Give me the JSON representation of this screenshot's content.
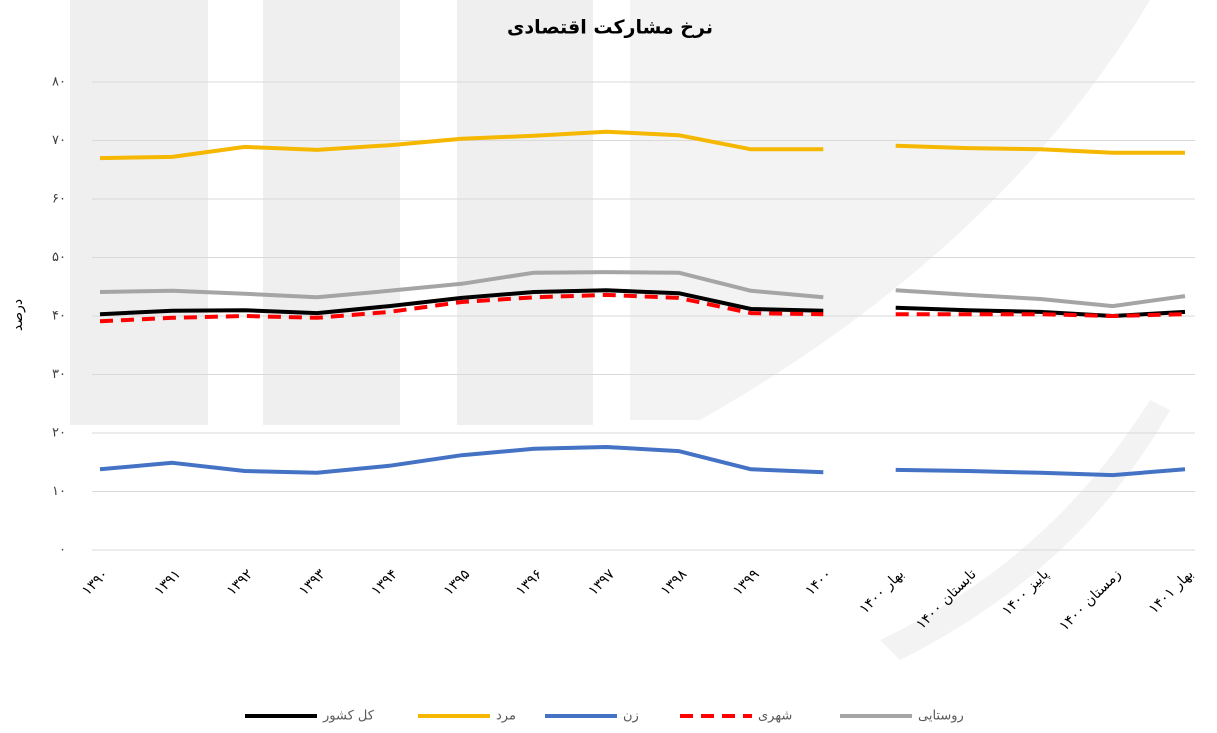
{
  "chart_data": {
    "type": "line",
    "title": "نرخ مشارکت اقتصادی",
    "y_label": "درصد",
    "categories": [
      "۱۳۹۰",
      "۱۳۹۱",
      "۱۳۹۲",
      "۱۳۹۳",
      "۱۳۹۴",
      "۱۳۹۵",
      "۱۳۹۶",
      "۱۳۹۷",
      "۱۳۹۸",
      "۱۳۹۹",
      "۱۴۰۰",
      "بهار ۱۴۰۰",
      "تابستان ۱۴۰۰",
      "پاییز ۱۴۰۰",
      "زمستان ۱۴۰۰",
      "بهار ۱۴۰۱"
    ],
    "gap_after": 10,
    "series": [
      {
        "name": "کل کشور",
        "color": "#000000",
        "values": [
          40.3,
          40.9,
          41.0,
          40.5,
          41.7,
          43.1,
          44.1,
          44.4,
          43.9,
          41.2,
          40.9,
          41.4,
          41.0,
          40.7,
          40.0,
          40.7
        ]
      },
      {
        "name": "مرد",
        "color": "#f5b700",
        "values": [
          67.0,
          67.2,
          68.9,
          68.4,
          69.2,
          70.3,
          70.8,
          71.5,
          70.9,
          68.5,
          68.5,
          69.1,
          68.7,
          68.5,
          67.9,
          67.9
        ]
      },
      {
        "name": "زن",
        "color": "#4472c4",
        "values": [
          13.8,
          14.9,
          13.5,
          13.2,
          14.4,
          16.2,
          17.3,
          17.6,
          16.9,
          13.8,
          13.3,
          13.7,
          13.5,
          13.2,
          12.8,
          13.8
        ]
      },
      {
        "name": "شهری",
        "color": "#ff0000",
        "dashed": true,
        "values": [
          39.1,
          39.7,
          40.0,
          39.7,
          40.7,
          42.4,
          43.2,
          43.6,
          43.1,
          40.5,
          40.3,
          40.3,
          40.3,
          40.3,
          40.0,
          40.3
        ]
      },
      {
        "name": "روستایی",
        "color": "#a5a5a5",
        "values": [
          44.1,
          44.3,
          43.8,
          43.2,
          44.3,
          45.5,
          47.4,
          47.5,
          47.4,
          44.3,
          43.2,
          44.4,
          43.6,
          42.9,
          41.7,
          43.4
        ]
      }
    ],
    "ylim": [
      0,
      80
    ],
    "yticks": [
      {
        "value": 0,
        "label": "۰"
      },
      {
        "value": 10,
        "label": "۱۰"
      },
      {
        "value": 20,
        "label": "۲۰"
      },
      {
        "value": 30,
        "label": "۳۰"
      },
      {
        "value": 40,
        "label": "۴۰"
      },
      {
        "value": 50,
        "label": "۵۰"
      },
      {
        "value": 60,
        "label": "۶۰"
      },
      {
        "value": 70,
        "label": "۷۰"
      },
      {
        "value": 80,
        "label": "۸۰"
      }
    ],
    "grid": true,
    "legend": "bottom"
  }
}
